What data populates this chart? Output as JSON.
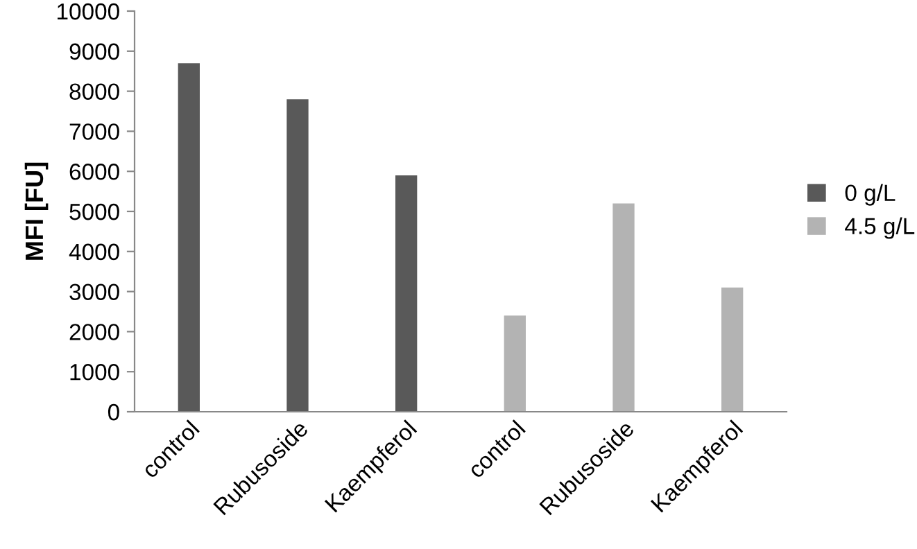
{
  "chart_data": {
    "type": "bar",
    "ylabel": "MFI [FU]",
    "categories": [
      "control",
      "Rubusoside",
      "Kaempferol",
      "control",
      "Rubusoside",
      "Kaempferol"
    ],
    "series": [
      {
        "name": "0 g/L",
        "color": "#595959",
        "values": [
          8700,
          7800,
          5900,
          null,
          null,
          null
        ]
      },
      {
        "name": "4.5 g/L",
        "color": "#b3b3b3",
        "values": [
          null,
          null,
          null,
          2400,
          5200,
          3100
        ]
      }
    ],
    "ylim": [
      0,
      10000
    ],
    "yticks": [
      0,
      1000,
      2000,
      3000,
      4000,
      5000,
      6000,
      7000,
      8000,
      9000,
      10000
    ],
    "grid": false,
    "legend": "right"
  }
}
